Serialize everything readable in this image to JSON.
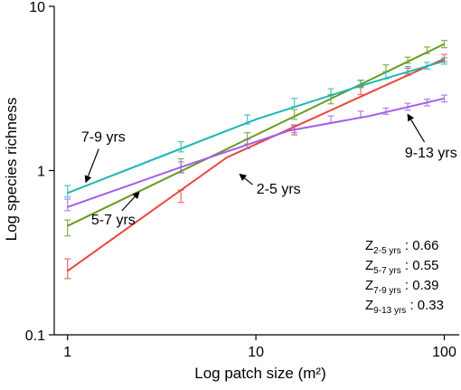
{
  "chart_data": {
    "type": "line",
    "xlabel": "Log patch size (m²)",
    "ylabel": "Log species richness",
    "x_scale": "log",
    "y_scale": "log",
    "xlim": [
      0.85,
      120
    ],
    "ylim": [
      0.1,
      10
    ],
    "x_ticks": [
      1,
      10,
      100
    ],
    "x_tick_labels": [
      "1",
      "10",
      "100"
    ],
    "y_ticks": [
      0.1,
      1,
      10
    ],
    "y_tick_labels": [
      "0.1",
      "1",
      "10"
    ],
    "grid": false,
    "series": [
      {
        "name": "2-5 yrs",
        "color": "#e8473c",
        "x": [
          1,
          4,
          16,
          36,
          64,
          100
        ],
        "y": [
          0.25,
          0.7,
          1.75,
          3.05,
          4.0,
          4.85
        ],
        "y_low": [
          0.22,
          0.64,
          1.65,
          2.9,
          3.8,
          4.6
        ],
        "y_high": [
          0.29,
          0.76,
          1.87,
          3.2,
          4.2,
          5.1
        ],
        "fit": [
          [
            1,
            0.245
          ],
          [
            7,
            1.2
          ],
          [
            100,
            4.8
          ]
        ]
      },
      {
        "name": "5-7 yrs",
        "color": "#6a9a1f",
        "x": [
          1,
          4,
          9,
          16,
          25,
          36,
          49,
          64,
          81,
          100
        ],
        "y": [
          0.45,
          1.08,
          1.55,
          2.2,
          2.7,
          3.4,
          4.2,
          4.7,
          5.4,
          5.9
        ],
        "y_low": [
          0.4,
          0.97,
          1.45,
          2.05,
          2.55,
          3.25,
          4.0,
          4.5,
          5.15,
          5.6
        ],
        "y_high": [
          0.5,
          1.18,
          1.7,
          2.35,
          2.9,
          3.55,
          4.4,
          4.9,
          5.65,
          6.2
        ],
        "fit": [
          [
            1,
            0.46
          ],
          [
            100,
            5.9
          ]
        ]
      },
      {
        "name": "7-9 yrs",
        "color": "#1fb6b6",
        "x": [
          1,
          4,
          9,
          16,
          25,
          36,
          49,
          64,
          81,
          100
        ],
        "y": [
          0.75,
          1.4,
          2.05,
          2.6,
          3.0,
          3.4,
          3.8,
          4.1,
          4.35,
          4.65
        ],
        "y_low": [
          0.69,
          1.3,
          1.92,
          2.45,
          2.85,
          3.25,
          3.62,
          3.9,
          4.15,
          4.45
        ],
        "y_high": [
          0.81,
          1.5,
          2.18,
          2.75,
          3.15,
          3.55,
          3.98,
          4.3,
          4.55,
          4.85
        ],
        "fit": [
          [
            1,
            0.73
          ],
          [
            10,
            2.05
          ],
          [
            35,
            3.25
          ],
          [
            100,
            4.65
          ]
        ]
      },
      {
        "name": "9-13 yrs",
        "color": "#a35ee8",
        "x": [
          1,
          4,
          9,
          16,
          25,
          36,
          49,
          64,
          81,
          100
        ],
        "y": [
          0.62,
          1.05,
          1.45,
          1.8,
          2.05,
          2.2,
          2.3,
          2.45,
          2.6,
          2.75
        ],
        "y_low": [
          0.57,
          0.97,
          1.36,
          1.7,
          1.95,
          2.1,
          2.2,
          2.33,
          2.48,
          2.62
        ],
        "y_high": [
          0.67,
          1.13,
          1.55,
          1.9,
          2.15,
          2.3,
          2.4,
          2.57,
          2.72,
          2.88
        ],
        "fit": [
          [
            1,
            0.6
          ],
          [
            4,
            1.05
          ],
          [
            15,
            1.75
          ],
          [
            40,
            2.15
          ],
          [
            100,
            2.75
          ]
        ]
      }
    ],
    "annotations": [
      {
        "text": "7-9 yrs",
        "label_x": 1.55,
        "label_y": 1.6,
        "arrow_to_x": 1.25,
        "arrow_to_y": 0.85
      },
      {
        "text": "5-7 yrs",
        "label_x": 1.75,
        "label_y": 0.5,
        "arrow_to_x": 2.4,
        "arrow_to_y": 0.74
      },
      {
        "text": "2-5 yrs",
        "label_x": 13.2,
        "label_y": 0.77,
        "arrow_to_x": 8.2,
        "arrow_to_y": 0.95
      },
      {
        "text": "9-13 yrs",
        "label_x": 85,
        "label_y": 1.28,
        "arrow_to_x": 64,
        "arrow_to_y": 2.2
      }
    ],
    "z_values": [
      {
        "label": "Z",
        "sub": "2-5 yrs",
        "value": ": 0.66"
      },
      {
        "label": "Z",
        "sub": "5-7 yrs",
        "value": ": 0.55"
      },
      {
        "label": "Z",
        "sub": "7-9 yrs",
        "value": ": 0.39"
      },
      {
        "label": "Z",
        "sub": "9-13 yrs",
        "value": ": 0.33"
      }
    ]
  }
}
